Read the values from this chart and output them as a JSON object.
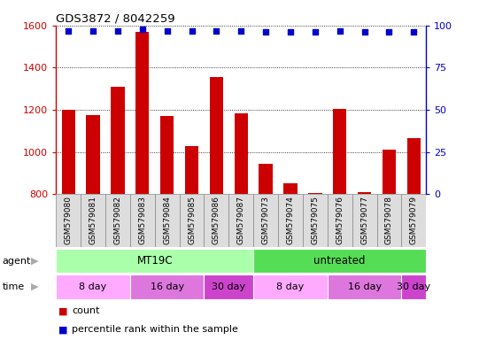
{
  "title": "GDS3872 / 8042259",
  "samples": [
    "GSM579080",
    "GSM579081",
    "GSM579082",
    "GSM579083",
    "GSM579084",
    "GSM579085",
    "GSM579086",
    "GSM579087",
    "GSM579073",
    "GSM579074",
    "GSM579075",
    "GSM579076",
    "GSM579077",
    "GSM579078",
    "GSM579079"
  ],
  "count_values": [
    1200,
    1175,
    1310,
    1570,
    1170,
    1030,
    1355,
    1185,
    945,
    850,
    805,
    1205,
    808,
    1010,
    1065
  ],
  "percentile_values": [
    97,
    97,
    97,
    98,
    97,
    97,
    97,
    97,
    96,
    96,
    96,
    97,
    96,
    96,
    96
  ],
  "ylim_left": [
    800,
    1600
  ],
  "ylim_right": [
    0,
    100
  ],
  "yticks_left": [
    800,
    1000,
    1200,
    1400,
    1600
  ],
  "yticks_right": [
    0,
    25,
    50,
    75,
    100
  ],
  "bar_color": "#cc0000",
  "dot_color": "#0000cc",
  "agent_groups": [
    {
      "text": "MT19C",
      "start": 0,
      "end": 8,
      "color": "#aaffaa"
    },
    {
      "text": "untreated",
      "start": 8,
      "end": 15,
      "color": "#55dd55"
    }
  ],
  "time_groups": [
    {
      "text": "8 day",
      "start": 0,
      "end": 3,
      "color": "#ffaaff"
    },
    {
      "text": "16 day",
      "start": 3,
      "end": 6,
      "color": "#dd77dd"
    },
    {
      "text": "30 day",
      "start": 6,
      "end": 8,
      "color": "#cc44cc"
    },
    {
      "text": "8 day",
      "start": 8,
      "end": 11,
      "color": "#ffaaff"
    },
    {
      "text": "16 day",
      "start": 11,
      "end": 14,
      "color": "#dd77dd"
    },
    {
      "text": "30 day",
      "start": 14,
      "end": 15,
      "color": "#cc44cc"
    }
  ],
  "legend_items": [
    {
      "label": "count",
      "color": "#cc0000"
    },
    {
      "label": "percentile rank within the sample",
      "color": "#0000cc"
    }
  ],
  "label_arrow_color": "#aaaaaa",
  "tick_box_color": "#dddddd",
  "tick_box_edge_color": "#888888"
}
